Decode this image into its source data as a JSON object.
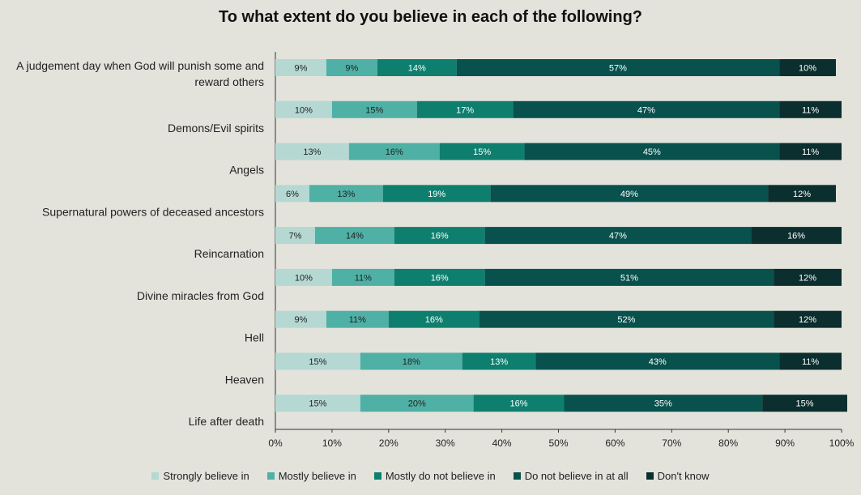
{
  "chart_data": {
    "type": "bar",
    "orientation": "horizontal",
    "stacked": true,
    "title": "To what extent do you believe in each of the following?",
    "categories": [
      "A judgement day when God will punish some and reward others",
      "Demons/Evil spirits",
      "Angels",
      "Supernatural powers of deceased ancestors",
      "Reincarnation",
      "Divine miracles from God",
      "Hell",
      "Heaven",
      "Life after death"
    ],
    "series": [
      {
        "name": "Strongly believe in",
        "color": "#b5d8d3",
        "label_color": "#222222",
        "values": [
          9,
          10,
          13,
          6,
          7,
          10,
          9,
          15,
          15
        ]
      },
      {
        "name": "Mostly believe in",
        "color": "#4fb0a5",
        "label_color": "#222222",
        "values": [
          9,
          15,
          16,
          13,
          14,
          11,
          11,
          18,
          20
        ]
      },
      {
        "name": "Mostly do not believe in",
        "color": "#0e7f6f",
        "label_color": "#ffffff",
        "values": [
          14,
          17,
          15,
          19,
          16,
          16,
          16,
          13,
          16
        ]
      },
      {
        "name": "Do not believe in at all",
        "color": "#08514c",
        "label_color": "#ffffff",
        "values": [
          57,
          47,
          45,
          49,
          47,
          51,
          52,
          43,
          35
        ]
      },
      {
        "name": "Don't know",
        "color": "#0b2e2e",
        "label_color": "#ffffff",
        "values": [
          10,
          11,
          11,
          12,
          16,
          12,
          12,
          11,
          15
        ]
      }
    ],
    "x_ticks": [
      "0%",
      "10%",
      "20%",
      "30%",
      "40%",
      "50%",
      "60%",
      "70%",
      "80%",
      "90%",
      "100%"
    ],
    "xlim": [
      0,
      100
    ],
    "legend_position": "bottom",
    "grid": false
  }
}
